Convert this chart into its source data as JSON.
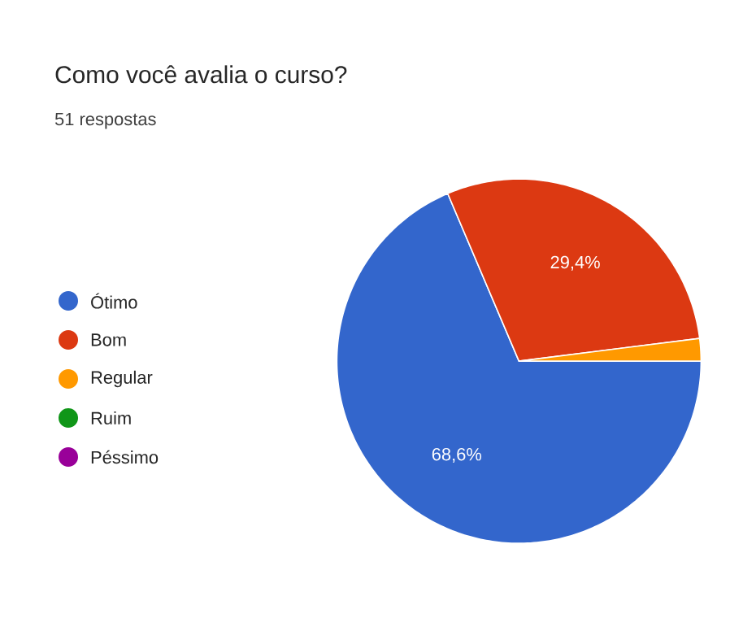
{
  "chart_data": {
    "type": "pie",
    "title": "Como você avalia o curso?",
    "subtitle": "51 respostas",
    "categories": [
      "Ótimo",
      "Bom",
      "Regular",
      "Ruim",
      "Péssimo"
    ],
    "values": [
      68.6,
      29.4,
      2.0,
      0,
      0
    ],
    "colors": [
      "#3366cc",
      "#dc3912",
      "#ff9900",
      "#109618",
      "#990099"
    ],
    "value_labels": [
      "68,6%",
      "29,4%",
      null,
      null,
      null
    ],
    "legend": "left"
  }
}
